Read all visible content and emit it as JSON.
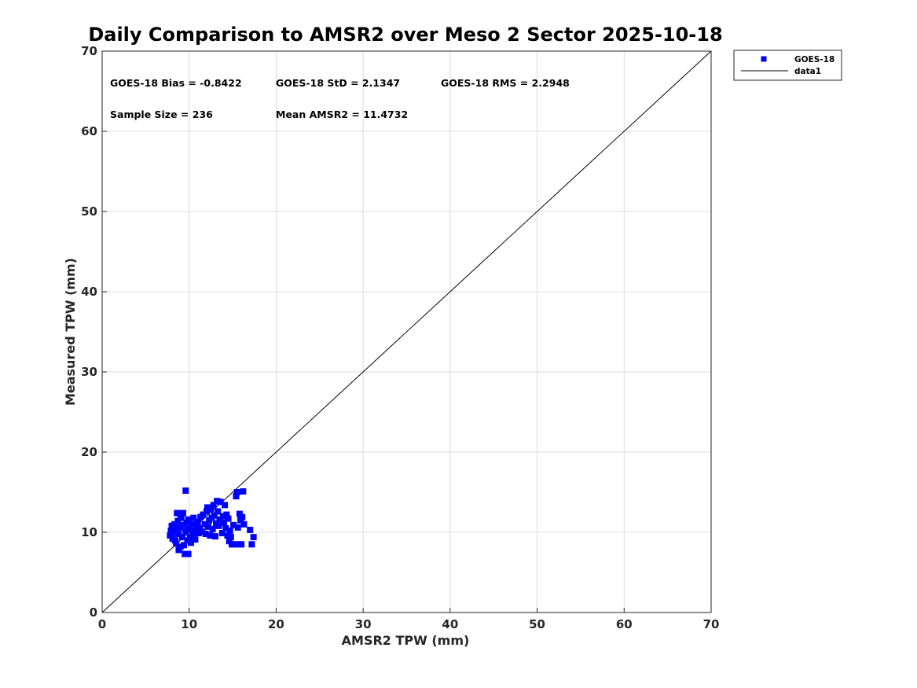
{
  "chart_data": {
    "type": "scatter",
    "title": "Daily Comparison to AMSR2 over Meso 2 Sector 2025-10-18",
    "xlabel": "AMSR2 TPW (mm)",
    "ylabel": "Measured TPW (mm)",
    "xlim": [
      0,
      70
    ],
    "ylim": [
      0,
      70
    ],
    "xticks": [
      "0",
      "10",
      "20",
      "30",
      "40",
      "50",
      "60",
      "70"
    ],
    "yticks": [
      "0",
      "10",
      "20",
      "30",
      "40",
      "50",
      "60",
      "70"
    ],
    "grid": true,
    "legend_position": "outside top-right",
    "stats": {
      "bias": "GOES-18 Bias = -0.8422",
      "std": "GOES-18 StD = 2.1347",
      "rms": "GOES-18 RMS = 2.2948",
      "sample_size": "Sample Size = 236",
      "mean": "Mean AMSR2 = 11.4732"
    },
    "series": [
      {
        "name": "GOES-18",
        "color": "#0000ff",
        "marker": "square",
        "points": [
          [
            7.8,
            9.6
          ],
          [
            7.9,
            10.2
          ],
          [
            8.0,
            10.8
          ],
          [
            8.1,
            9.2
          ],
          [
            8.2,
            10.0
          ],
          [
            8.3,
            11.0
          ],
          [
            8.4,
            9.0
          ],
          [
            8.5,
            8.6
          ],
          [
            8.5,
            10.4
          ],
          [
            8.6,
            12.4
          ],
          [
            8.7,
            11.4
          ],
          [
            8.8,
            9.8
          ],
          [
            8.8,
            7.8
          ],
          [
            8.9,
            10.6
          ],
          [
            9.0,
            12.2
          ],
          [
            9.0,
            8.2
          ],
          [
            9.1,
            11.8
          ],
          [
            9.2,
            9.4
          ],
          [
            9.3,
            12.4
          ],
          [
            9.3,
            10.9
          ],
          [
            9.4,
            8.4
          ],
          [
            9.5,
            7.3
          ],
          [
            9.6,
            15.2
          ],
          [
            9.6,
            10.1
          ],
          [
            9.7,
            11.2
          ],
          [
            9.8,
            9.0
          ],
          [
            9.9,
            7.3
          ],
          [
            9.9,
            11.6
          ],
          [
            10.0,
            10.4
          ],
          [
            10.1,
            9.4
          ],
          [
            10.2,
            8.7
          ],
          [
            10.3,
            11.0
          ],
          [
            10.4,
            9.7
          ],
          [
            10.5,
            11.8
          ],
          [
            10.6,
            10.2
          ],
          [
            10.7,
            9.1
          ],
          [
            10.9,
            10.8
          ],
          [
            11.0,
            11.3
          ],
          [
            11.1,
            9.9
          ],
          [
            11.2,
            10.5
          ],
          [
            11.3,
            11.9
          ],
          [
            11.5,
            10.1
          ],
          [
            11.6,
            12.2
          ],
          [
            11.8,
            11.0
          ],
          [
            11.9,
            9.8
          ],
          [
            12.0,
            12.6
          ],
          [
            12.1,
            13.1
          ],
          [
            12.2,
            10.7
          ],
          [
            12.3,
            11.5
          ],
          [
            12.4,
            9.6
          ],
          [
            12.5,
            12.9
          ],
          [
            12.6,
            11.8
          ],
          [
            12.7,
            10.4
          ],
          [
            12.8,
            13.4
          ],
          [
            12.9,
            12.1
          ],
          [
            13.0,
            9.5
          ],
          [
            13.1,
            11.1
          ],
          [
            13.2,
            13.9
          ],
          [
            13.3,
            12.6
          ],
          [
            13.4,
            10.8
          ],
          [
            13.5,
            11.6
          ],
          [
            13.6,
            13.8
          ],
          [
            13.8,
            9.9
          ],
          [
            13.9,
            12.0
          ],
          [
            14.0,
            11.2
          ],
          [
            14.1,
            13.4
          ],
          [
            14.2,
            10.5
          ],
          [
            14.3,
            12.2
          ],
          [
            14.4,
            9.6
          ],
          [
            14.5,
            11.7
          ],
          [
            14.6,
            8.9
          ],
          [
            14.7,
            10.2
          ],
          [
            14.8,
            9.4
          ],
          [
            14.9,
            8.5
          ],
          [
            15.1,
            10.9
          ],
          [
            15.2,
            8.5
          ],
          [
            15.4,
            14.5
          ],
          [
            15.5,
            15.0
          ],
          [
            15.6,
            10.6
          ],
          [
            15.7,
            8.5
          ],
          [
            15.8,
            12.3
          ],
          [
            15.9,
            11.5
          ],
          [
            16.0,
            8.5
          ],
          [
            16.1,
            11.9
          ],
          [
            16.2,
            15.1
          ],
          [
            16.3,
            11.0
          ],
          [
            17.0,
            10.3
          ],
          [
            17.2,
            8.5
          ],
          [
            17.4,
            9.4
          ]
        ]
      },
      {
        "name": "data1",
        "color": "#000000",
        "line": [
          [
            0,
            0
          ],
          [
            70,
            70
          ]
        ]
      }
    ]
  }
}
